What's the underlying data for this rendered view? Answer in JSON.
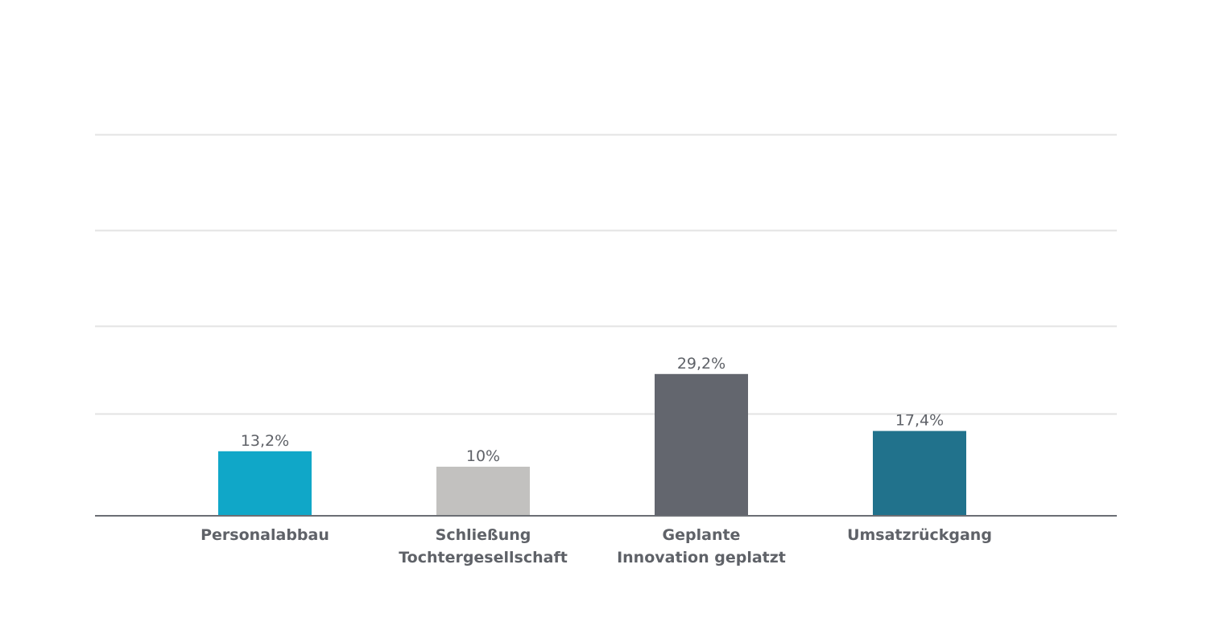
{
  "chart_data": {
    "type": "bar",
    "title": "",
    "xlabel": "",
    "ylabel": "",
    "categories": [
      [
        "Personalabbau"
      ],
      [
        "Schließung",
        "Tochtergesellschaft"
      ],
      [
        "Geplante",
        "Innovation geplatzt"
      ],
      [
        "Umsatzrückgang"
      ]
    ],
    "values": [
      13.2,
      10,
      29.2,
      17.4
    ],
    "data_labels": [
      "13,2%",
      "10%",
      "29,2%",
      "17,4%"
    ],
    "colors": [
      "#10a7c8",
      "#c2c1bf",
      "#63666e",
      "#21728c"
    ],
    "ylim": [
      0,
      80
    ],
    "grid": true,
    "legend": "none"
  }
}
